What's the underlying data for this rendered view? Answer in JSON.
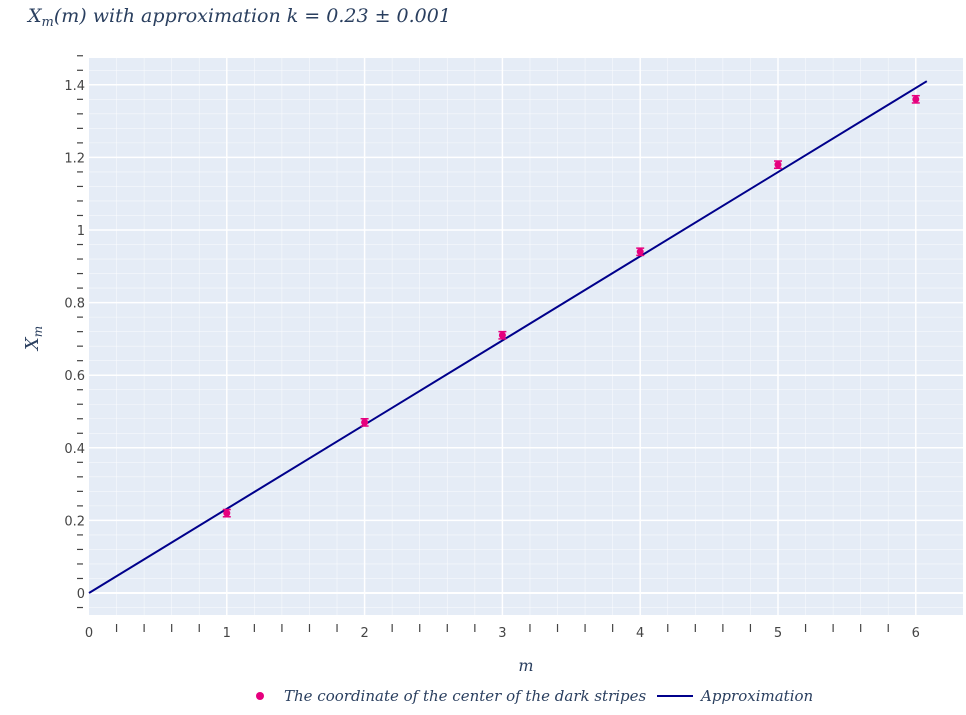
{
  "chart_data": {
    "type": "scatter",
    "title": "X_m(m) with approximation k = 0.23 ± 0.001",
    "xlabel": "m",
    "ylabel": "X_m",
    "xlim": [
      0,
      6.15
    ],
    "ylim": [
      -0.08,
      1.5
    ],
    "x_ticks": [
      0,
      1,
      2,
      3,
      4,
      5,
      6
    ],
    "x_tick_labels": [
      "0",
      "1",
      "2",
      "3",
      "4",
      "5",
      "6"
    ],
    "y_ticks": [
      0,
      0.2,
      0.4,
      0.6,
      0.8,
      1.0,
      1.2,
      1.4
    ],
    "y_tick_labels": [
      "0",
      "0.2",
      "0.4",
      "0.6",
      "0.8",
      "1",
      "1.2",
      "1.4"
    ],
    "grid": true,
    "legend_position": "bottom-center",
    "series": [
      {
        "name": "The coordinate of the center of the dark stripes",
        "kind": "markers",
        "color": "#e6007e",
        "x": [
          1,
          2,
          3,
          4,
          5,
          6
        ],
        "y": [
          0.22,
          0.47,
          0.71,
          0.94,
          1.18,
          1.36
        ],
        "error_y": 0.01
      },
      {
        "name": "Approximation",
        "kind": "line",
        "color": "#00008b",
        "x": [
          0,
          6.08
        ],
        "y": [
          0,
          1.41
        ]
      }
    ]
  },
  "title": {
    "main": "X",
    "sub": "m",
    "rest": "(m) with approximation k = 0.23 ± 0.001"
  },
  "axes": {
    "xlabel": "m",
    "ylabel_main": "X",
    "ylabel_sub": "m"
  },
  "legend": {
    "items": [
      "The coordinate of the center of the dark stripes",
      "Approximation"
    ]
  },
  "colors": {
    "plot_bg": "#e5ecf6",
    "grid": "#ffffff",
    "markers": "#e6007e",
    "line": "#00008b",
    "text": "#2a3f5f"
  }
}
